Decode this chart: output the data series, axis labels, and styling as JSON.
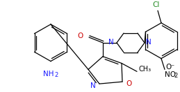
{
  "background_color": "#ffffff",
  "line_color": "#000000",
  "lw": 0.9,
  "figsize": [
    2.59,
    1.33
  ],
  "dpi": 100,
  "xlim": [
    0,
    259
  ],
  "ylim": [
    0,
    133
  ]
}
